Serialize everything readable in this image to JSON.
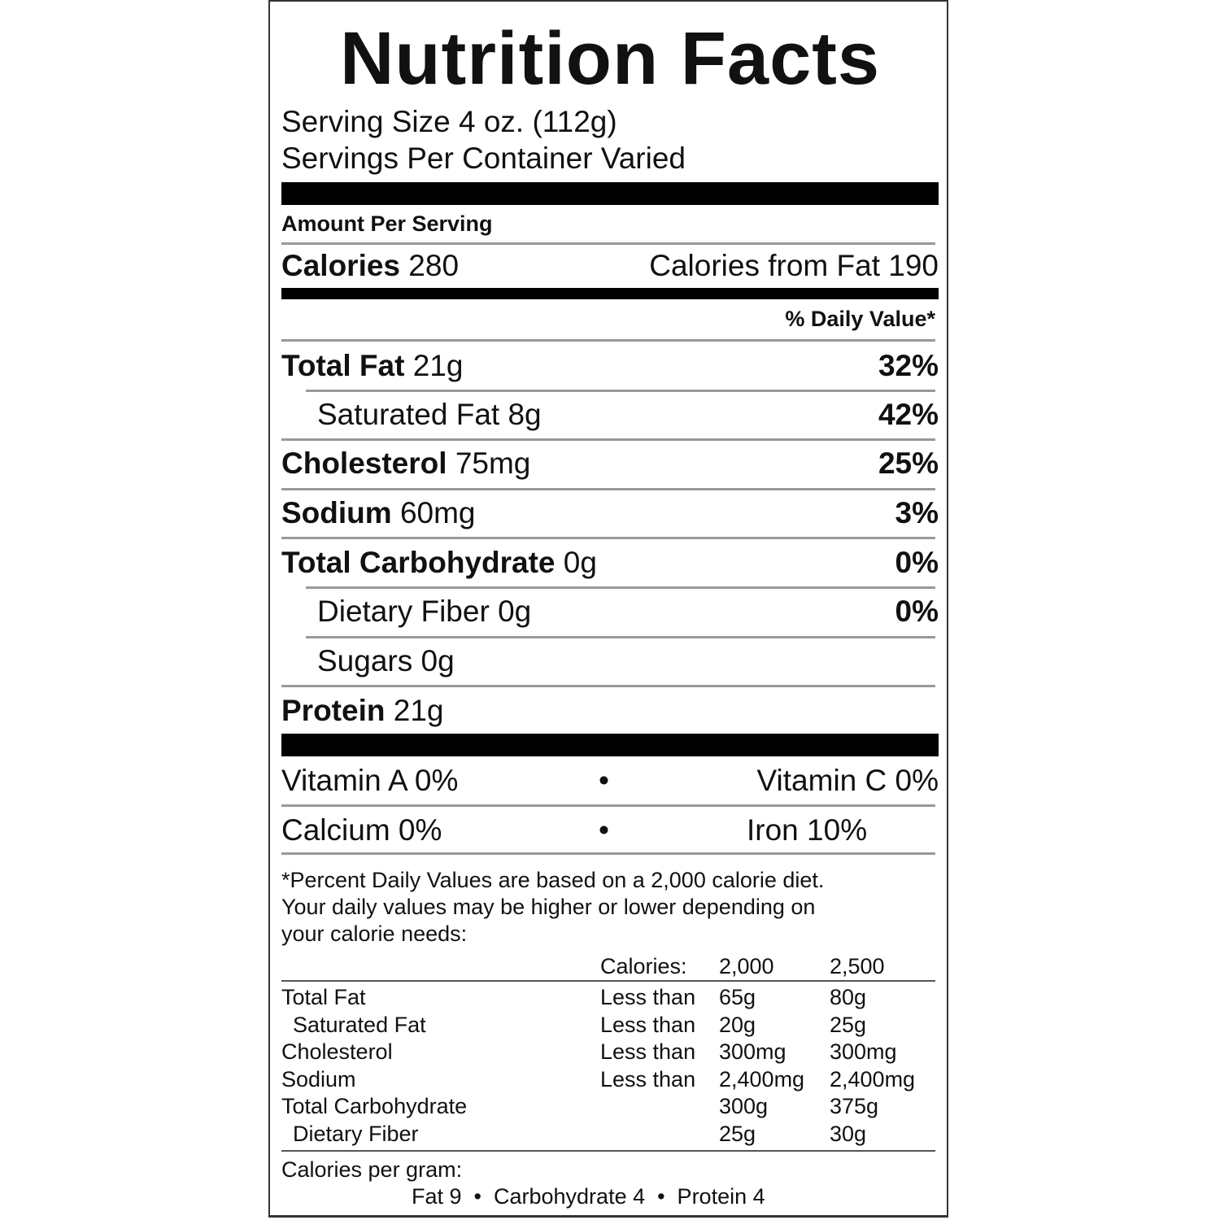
{
  "title": "Nutrition Facts",
  "serving_size": "Serving Size 4 oz. (112g)",
  "servings_per_container": "Servings Per Container Varied",
  "amount_per_serving": "Amount Per Serving",
  "calories": {
    "label": "Calories",
    "value": "280",
    "from_fat": "Calories from Fat 190"
  },
  "daily_value_header": "% Daily Value*",
  "nutrients": [
    {
      "label": "Total Fat",
      "amount": "21g",
      "dv": "32%"
    },
    {
      "label": "Saturated Fat",
      "amount": "8g",
      "dv": "42%"
    },
    {
      "label": "Cholesterol",
      "amount": "75mg",
      "dv": "25%"
    },
    {
      "label": "Sodium",
      "amount": "60mg",
      "dv": "3%"
    },
    {
      "label": "Total Carbohydrate",
      "amount": "0g",
      "dv": "0%"
    },
    {
      "label": "Dietary Fiber",
      "amount": "0g",
      "dv": "0%"
    },
    {
      "label": "Sugars",
      "amount": "0g",
      "dv": ""
    },
    {
      "label": "Protein",
      "amount": "21g",
      "dv": ""
    }
  ],
  "vitamins": [
    {
      "left": "Vitamin A 0%",
      "right": "Vitamin C 0%"
    },
    {
      "left": "Calcium 0%",
      "right": "Iron 10%"
    }
  ],
  "bullet": "•",
  "footnote": [
    "*Percent Daily Values are based on a 2,000 calorie diet.",
    "Your daily values may be higher or lower depending on",
    "your calorie needs:"
  ],
  "dv_table": {
    "header": [
      "Calories:",
      "2,000",
      "2,500"
    ],
    "rows": [
      [
        "Total Fat",
        "Less than",
        "65g",
        "80g"
      ],
      [
        "Saturated Fat",
        "Less than",
        "20g",
        "25g"
      ],
      [
        "Cholesterol",
        "Less than",
        "300mg",
        "300mg"
      ],
      [
        "Sodium",
        "Less than",
        "2,400mg",
        "2,400mg"
      ],
      [
        "Total Carbohydrate",
        "",
        "300g",
        "375g"
      ],
      [
        "Dietary Fiber",
        "",
        "25g",
        "30g"
      ]
    ]
  },
  "calories_per_gram": {
    "label": "Calories per gram:",
    "line": "Fat 9  •  Carbohydrate 4  •  Protein 4"
  }
}
